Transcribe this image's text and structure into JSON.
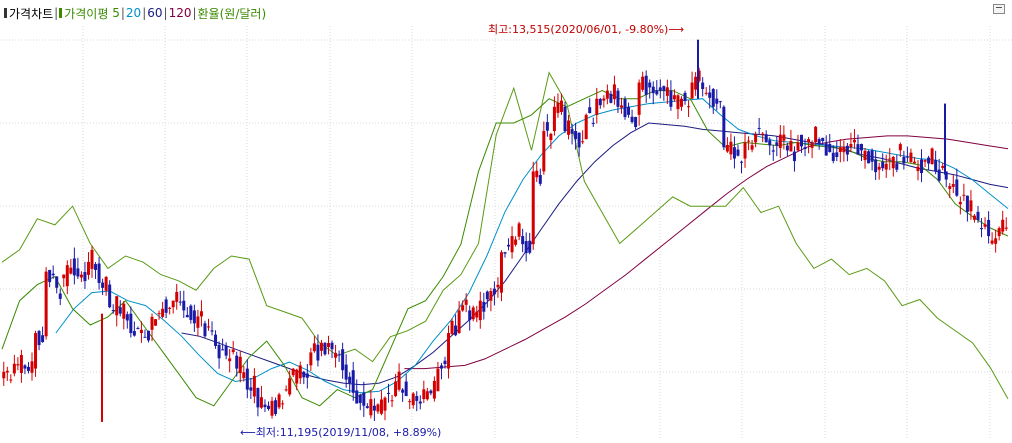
{
  "legend": {
    "price_chart": "가격차트",
    "disparity": "가격이평",
    "ma5": "5",
    "ma20": "20",
    "ma60": "60",
    "ma120": "120",
    "fx": "환율(원/달러)",
    "sep": "|"
  },
  "annotations": {
    "high": "최고:13,515(2020/06/01, -9.80%)⟶",
    "low": "⟵최저:11,195(2019/11/08, +8.89%)"
  },
  "colors": {
    "up": "#d40000",
    "down": "#1a1aa8",
    "ma5": "#3a8a00",
    "ma20": "#0090c8",
    "ma60": "#1a1a80",
    "ma120": "#800040",
    "fx": "#5a9a14",
    "grid": "#d8d8d8"
  },
  "chart_data": {
    "type": "candlestick",
    "y_range": [
      11100,
      13600
    ],
    "high": {
      "value": 13515,
      "date": "2020/06/01",
      "pct": "-9.80%"
    },
    "low": {
      "value": 11195,
      "date": "2019/11/08",
      "pct": "+8.89%"
    },
    "ohlc_anchors": [
      {
        "o": 11420,
        "c": 11460
      },
      {
        "o": 11450,
        "c": 11510
      },
      {
        "o": 11500,
        "c": 11480
      },
      {
        "o": 11480,
        "c": 11700
      },
      {
        "o": 11680,
        "c": 12080
      },
      {
        "o": 12050,
        "c": 11980
      },
      {
        "o": 11990,
        "c": 12120
      },
      {
        "o": 12100,
        "c": 12050
      },
      {
        "o": 12060,
        "c": 12140
      },
      {
        "o": 12130,
        "c": 12010
      },
      {
        "o": 12000,
        "c": 11860
      },
      {
        "o": 11860,
        "c": 11820
      },
      {
        "o": 11820,
        "c": 11700
      },
      {
        "o": 11700,
        "c": 11720
      },
      {
        "o": 11720,
        "c": 11800
      },
      {
        "o": 11800,
        "c": 11850
      },
      {
        "o": 11860,
        "c": 11900
      },
      {
        "o": 11900,
        "c": 11840
      },
      {
        "o": 11840,
        "c": 11760
      },
      {
        "o": 11760,
        "c": 11680
      },
      {
        "o": 11690,
        "c": 11620
      },
      {
        "o": 11620,
        "c": 11560
      },
      {
        "o": 11560,
        "c": 11480
      },
      {
        "o": 11480,
        "c": 11350
      },
      {
        "o": 11360,
        "c": 11240
      },
      {
        "o": 11250,
        "c": 11230
      },
      {
        "o": 11240,
        "c": 11320
      },
      {
        "o": 11320,
        "c": 11420
      },
      {
        "o": 11420,
        "c": 11500
      },
      {
        "o": 11500,
        "c": 11580
      },
      {
        "o": 11590,
        "c": 11640
      },
      {
        "o": 11640,
        "c": 11600
      },
      {
        "o": 11600,
        "c": 11470
      },
      {
        "o": 11470,
        "c": 11330
      },
      {
        "o": 11330,
        "c": 11250
      },
      {
        "o": 11250,
        "c": 11220
      },
      {
        "o": 11220,
        "c": 11300
      },
      {
        "o": 11310,
        "c": 11400
      },
      {
        "o": 11400,
        "c": 11310
      },
      {
        "o": 11310,
        "c": 11280
      },
      {
        "o": 11290,
        "c": 11340
      },
      {
        "o": 11340,
        "c": 11480
      },
      {
        "o": 11480,
        "c": 11700
      },
      {
        "o": 11700,
        "c": 11840
      },
      {
        "o": 11840,
        "c": 11780
      },
      {
        "o": 11780,
        "c": 11900
      },
      {
        "o": 11900,
        "c": 11960
      },
      {
        "o": 11950,
        "c": 12200
      },
      {
        "o": 12200,
        "c": 12300
      },
      {
        "o": 12300,
        "c": 12250
      },
      {
        "o": 12250,
        "c": 12700
      },
      {
        "o": 12700,
        "c": 12950
      },
      {
        "o": 12950,
        "c": 13100
      },
      {
        "o": 13100,
        "c": 12950
      },
      {
        "o": 12950,
        "c": 12900
      },
      {
        "o": 12900,
        "c": 13050
      },
      {
        "o": 13050,
        "c": 13150
      },
      {
        "o": 13150,
        "c": 13200
      },
      {
        "o": 13200,
        "c": 13100
      },
      {
        "o": 13100,
        "c": 13050
      },
      {
        "o": 13050,
        "c": 13250
      },
      {
        "o": 13250,
        "c": 13220
      },
      {
        "o": 13220,
        "c": 13200
      },
      {
        "o": 13200,
        "c": 13100
      },
      {
        "o": 13100,
        "c": 13150
      },
      {
        "o": 13150,
        "c": 13250
      },
      {
        "o": 13250,
        "c": 13210
      },
      {
        "o": 13210,
        "c": 13100
      },
      {
        "o": 13100,
        "c": 12850
      },
      {
        "o": 12850,
        "c": 12780
      },
      {
        "o": 12780,
        "c": 12880
      },
      {
        "o": 12880,
        "c": 12930
      },
      {
        "o": 12930,
        "c": 12880
      },
      {
        "o": 12880,
        "c": 12860
      },
      {
        "o": 12860,
        "c": 12830
      },
      {
        "o": 12830,
        "c": 12880
      },
      {
        "o": 12880,
        "c": 12900
      },
      {
        "o": 12900,
        "c": 12870
      },
      {
        "o": 12870,
        "c": 12820
      },
      {
        "o": 12820,
        "c": 12850
      },
      {
        "o": 12850,
        "c": 12870
      },
      {
        "o": 12870,
        "c": 12830
      },
      {
        "o": 12830,
        "c": 12760
      },
      {
        "o": 12760,
        "c": 12720
      },
      {
        "o": 12720,
        "c": 12790
      },
      {
        "o": 12790,
        "c": 12750
      },
      {
        "o": 12750,
        "c": 12760
      },
      {
        "o": 12760,
        "c": 12770
      },
      {
        "o": 12770,
        "c": 12700
      },
      {
        "o": 12700,
        "c": 12650
      },
      {
        "o": 12650,
        "c": 12550
      },
      {
        "o": 12550,
        "c": 12450
      },
      {
        "o": 12450,
        "c": 12400
      },
      {
        "o": 12400,
        "c": 12300
      },
      {
        "o": 12300,
        "c": 12350
      },
      {
        "o": 12350,
        "c": 12250
      }
    ],
    "ma5": [
      11600,
      11900,
      12000,
      12050,
      11850,
      11750,
      11800,
      11900,
      11750,
      11600,
      11450,
      11300,
      11250,
      11400,
      11550,
      11650,
      11500,
      11300,
      11250,
      11350,
      11300,
      11350,
      11600,
      11850,
      11900,
      12050,
      12250,
      12700,
      13000,
      13000,
      13050,
      13150,
      13100,
      13150,
      13200,
      13150,
      13150,
      13200,
      13200,
      13150,
      12950,
      12850,
      12880,
      12870,
      12860,
      12880,
      12860,
      12850,
      12830,
      12780,
      12760,
      12760,
      12740,
      12650,
      12500,
      12420,
      12350,
      12300
    ],
    "ma20": [
      null,
      null,
      null,
      11700,
      11850,
      11950,
      11960,
      11900,
      11870,
      11780,
      11680,
      11560,
      11450,
      11400,
      11420,
      11480,
      11520,
      11470,
      11400,
      11350,
      11330,
      11340,
      11400,
      11500,
      11650,
      11780,
      11950,
      12180,
      12450,
      12650,
      12800,
      12920,
      13000,
      13050,
      13080,
      13100,
      13120,
      13130,
      13140,
      13150,
      13050,
      12960,
      12920,
      12890,
      12880,
      12870,
      12860,
      12850,
      12840,
      12820,
      12800,
      12780,
      12770,
      12720,
      12650,
      12560,
      12470
    ],
    "ma60": [
      null,
      null,
      null,
      null,
      null,
      null,
      null,
      null,
      null,
      null,
      11700,
      11680,
      11640,
      11600,
      11560,
      11520,
      11480,
      11440,
      11410,
      11390,
      11380,
      11390,
      11430,
      11500,
      11580,
      11680,
      11780,
      11890,
      12020,
      12180,
      12340,
      12500,
      12640,
      12760,
      12860,
      12940,
      13000,
      12990,
      12980,
      12960,
      12950,
      12940,
      12930,
      12920,
      12900,
      12880,
      12860,
      12830,
      12800,
      12780,
      12750,
      12720,
      12700,
      12680,
      12650,
      12620,
      12600
    ],
    "ma120": [
      null,
      null,
      null,
      null,
      null,
      null,
      null,
      null,
      null,
      null,
      null,
      null,
      null,
      null,
      null,
      null,
      null,
      null,
      null,
      null,
      11480,
      11480,
      11490,
      11500,
      11540,
      11600,
      11660,
      11730,
      11800,
      11880,
      11970,
      12060,
      12160,
      12260,
      12360,
      12460,
      12560,
      12650,
      12730,
      12790,
      12850,
      12880,
      12900,
      12910,
      12920,
      12920,
      12910,
      12900,
      12880,
      12860,
      12840
    ],
    "fx": [
      1214,
      1218,
      1228,
      1226,
      1232,
      1220,
      1212,
      1216,
      1214,
      1210,
      1208,
      1205,
      1212,
      1216,
      1215,
      1200,
      1198,
      1196,
      1188,
      1184,
      1186,
      1182,
      1190,
      1192,
      1195,
      1205,
      1210,
      1220,
      1255,
      1270,
      1250,
      1275,
      1265,
      1240,
      1230,
      1220,
      1225,
      1230,
      1235,
      1232,
      1232,
      1232,
      1238,
      1230,
      1232,
      1220,
      1212,
      1215,
      1210,
      1212,
      1208,
      1200,
      1202,
      1196,
      1192,
      1188,
      1180,
      1170
    ]
  }
}
